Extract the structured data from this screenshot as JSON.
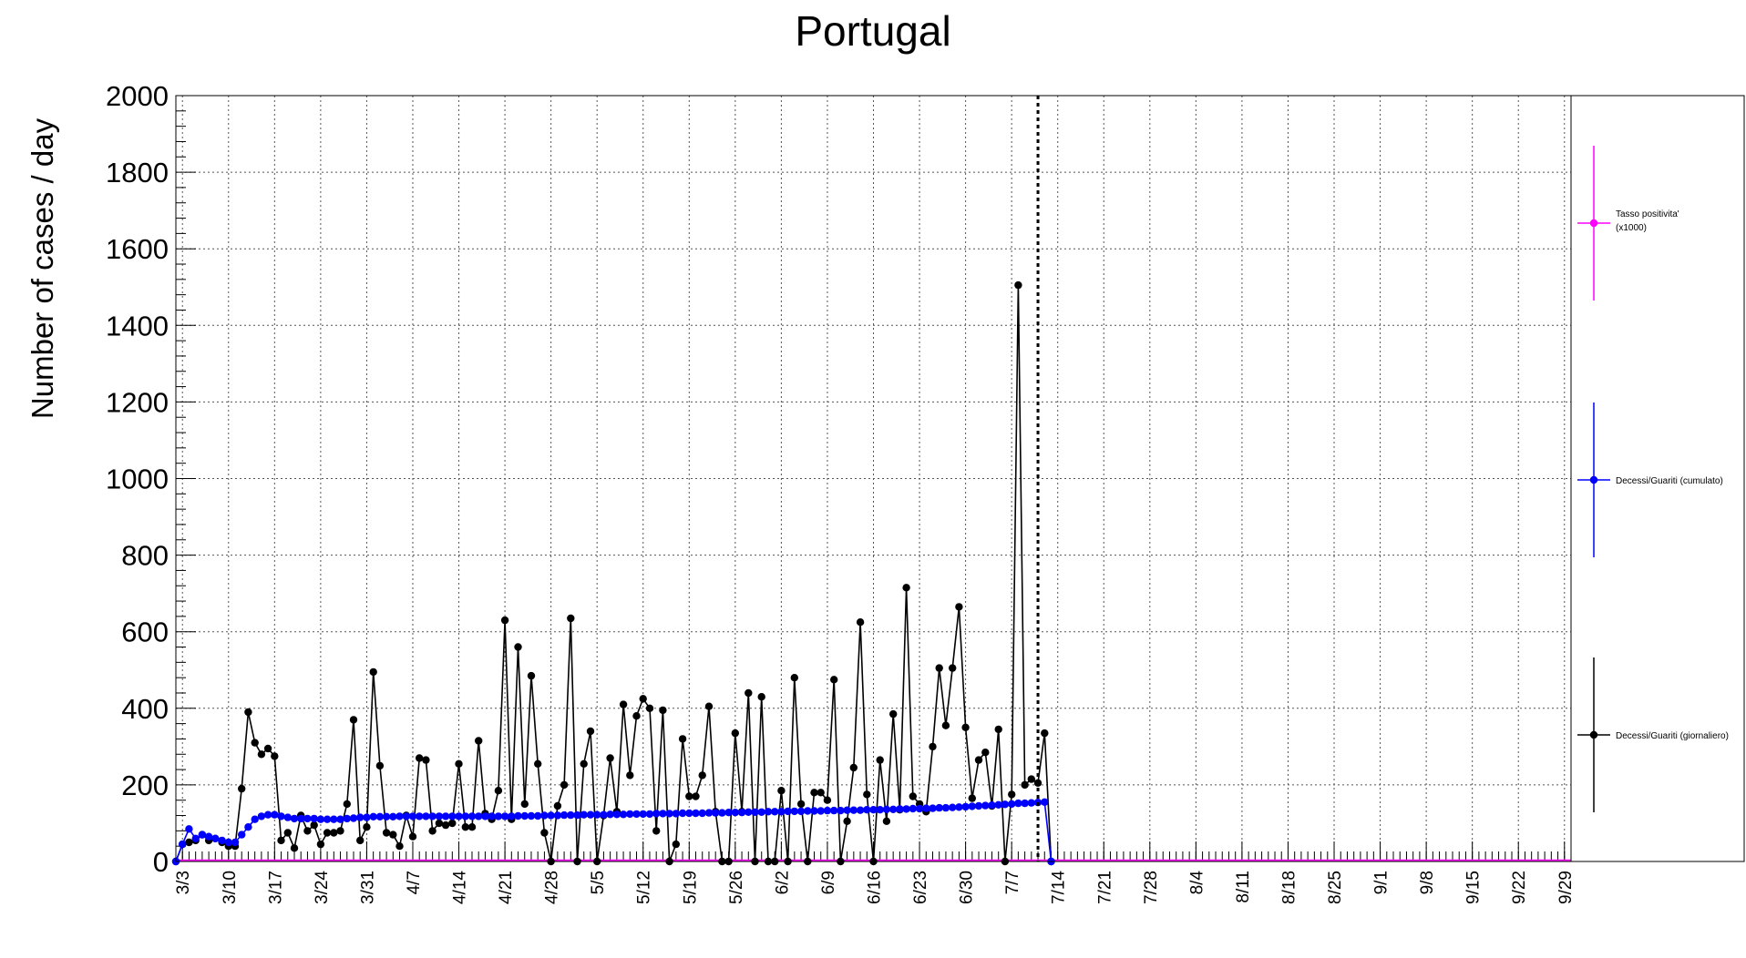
{
  "chart_data": {
    "type": "line",
    "title": "Portugal",
    "ylabel": "Number of cases / day",
    "xlabel": "",
    "ylim": [
      0,
      2000
    ],
    "yticks": [
      0,
      200,
      400,
      600,
      800,
      1000,
      1200,
      1400,
      1600,
      1800,
      2000
    ],
    "x_start": "3/2",
    "x_end": "9/30",
    "xticks": [
      "3/3",
      "3/10",
      "3/17",
      "3/24",
      "3/31",
      "4/7",
      "4/14",
      "4/21",
      "4/28",
      "5/5",
      "5/12",
      "5/19",
      "5/26",
      "6/2",
      "6/9",
      "6/16",
      "6/23",
      "6/30",
      "7/7",
      "7/14",
      "7/21",
      "7/28",
      "8/4",
      "8/11",
      "8/18",
      "8/25",
      "9/1",
      "9/8",
      "9/15",
      "9/22",
      "9/29"
    ],
    "grid": true,
    "legend_position": "right",
    "vline_date": "7/11",
    "series": [
      {
        "name": "Decessi/Guariti (giornaliero)",
        "color": "#000000",
        "values": [
          0,
          45,
          50,
          55,
          70,
          55,
          60,
          50,
          40,
          40,
          190,
          390,
          310,
          280,
          295,
          275,
          55,
          75,
          35,
          120,
          80,
          95,
          45,
          75,
          75,
          80,
          150,
          370,
          55,
          90,
          495,
          250,
          75,
          70,
          40,
          120,
          65,
          270,
          265,
          80,
          100,
          95,
          100,
          255,
          90,
          90,
          315,
          125,
          110,
          185,
          630,
          110,
          560,
          150,
          485,
          255,
          75,
          0,
          145,
          200,
          635,
          0,
          255,
          340,
          0,
          120,
          270,
          130,
          410,
          225,
          380,
          425,
          400,
          80,
          395,
          0,
          45,
          320,
          170,
          170,
          225,
          405,
          130,
          0,
          0,
          335,
          130,
          440,
          0,
          430,
          0,
          0,
          185,
          0,
          480,
          150,
          0,
          180,
          180,
          160,
          475,
          0,
          105,
          245,
          625,
          175,
          0,
          265,
          105,
          385,
          135,
          715,
          170,
          150,
          130,
          300,
          505,
          355,
          505,
          665,
          350,
          165,
          265,
          285,
          145,
          345,
          0,
          175,
          1505,
          200,
          215,
          205,
          335,
          0
        ]
      },
      {
        "name": "Decessi/Guariti (cumulato)",
        "color": "#0000ff",
        "values": [
          0,
          45,
          85,
          60,
          70,
          65,
          60,
          55,
          50,
          50,
          70,
          90,
          110,
          118,
          122,
          122,
          118,
          115,
          112,
          112,
          112,
          112,
          110,
          110,
          110,
          110,
          112,
          113,
          115,
          115,
          117,
          117,
          117,
          117,
          118,
          118,
          118,
          118,
          118,
          118,
          118,
          118,
          118,
          118,
          118,
          118,
          118,
          118,
          118,
          118,
          118,
          118,
          119,
          119,
          119,
          119,
          120,
          120,
          120,
          121,
          121,
          121,
          122,
          122,
          122,
          122,
          123,
          123,
          123,
          124,
          124,
          124,
          124,
          125,
          125,
          125,
          125,
          126,
          126,
          126,
          126,
          127,
          127,
          127,
          128,
          128,
          128,
          129,
          129,
          129,
          130,
          130,
          130,
          131,
          131,
          131,
          132,
          132,
          132,
          133,
          133,
          133,
          134,
          134,
          134,
          135,
          135,
          135,
          136,
          136,
          137,
          137,
          138,
          138,
          139,
          139,
          140,
          140,
          141,
          142,
          143,
          144,
          145,
          146,
          147,
          148,
          149,
          150,
          152,
          152,
          153,
          154,
          155,
          0
        ]
      },
      {
        "name": "Tasso positivita' (x1000)",
        "color": "#ff00ff",
        "values": [
          0
        ]
      }
    ],
    "legend": [
      {
        "label_line1": "Tasso positivita'",
        "label_line2": "(x1000)",
        "color": "#ff00ff"
      },
      {
        "label_line1": "Decessi/Guariti (cumulato)",
        "label_line2": "",
        "color": "#0000ff"
      },
      {
        "label_line1": "Decessi/Guariti (giornaliero)",
        "label_line2": "",
        "color": "#000000"
      }
    ]
  }
}
